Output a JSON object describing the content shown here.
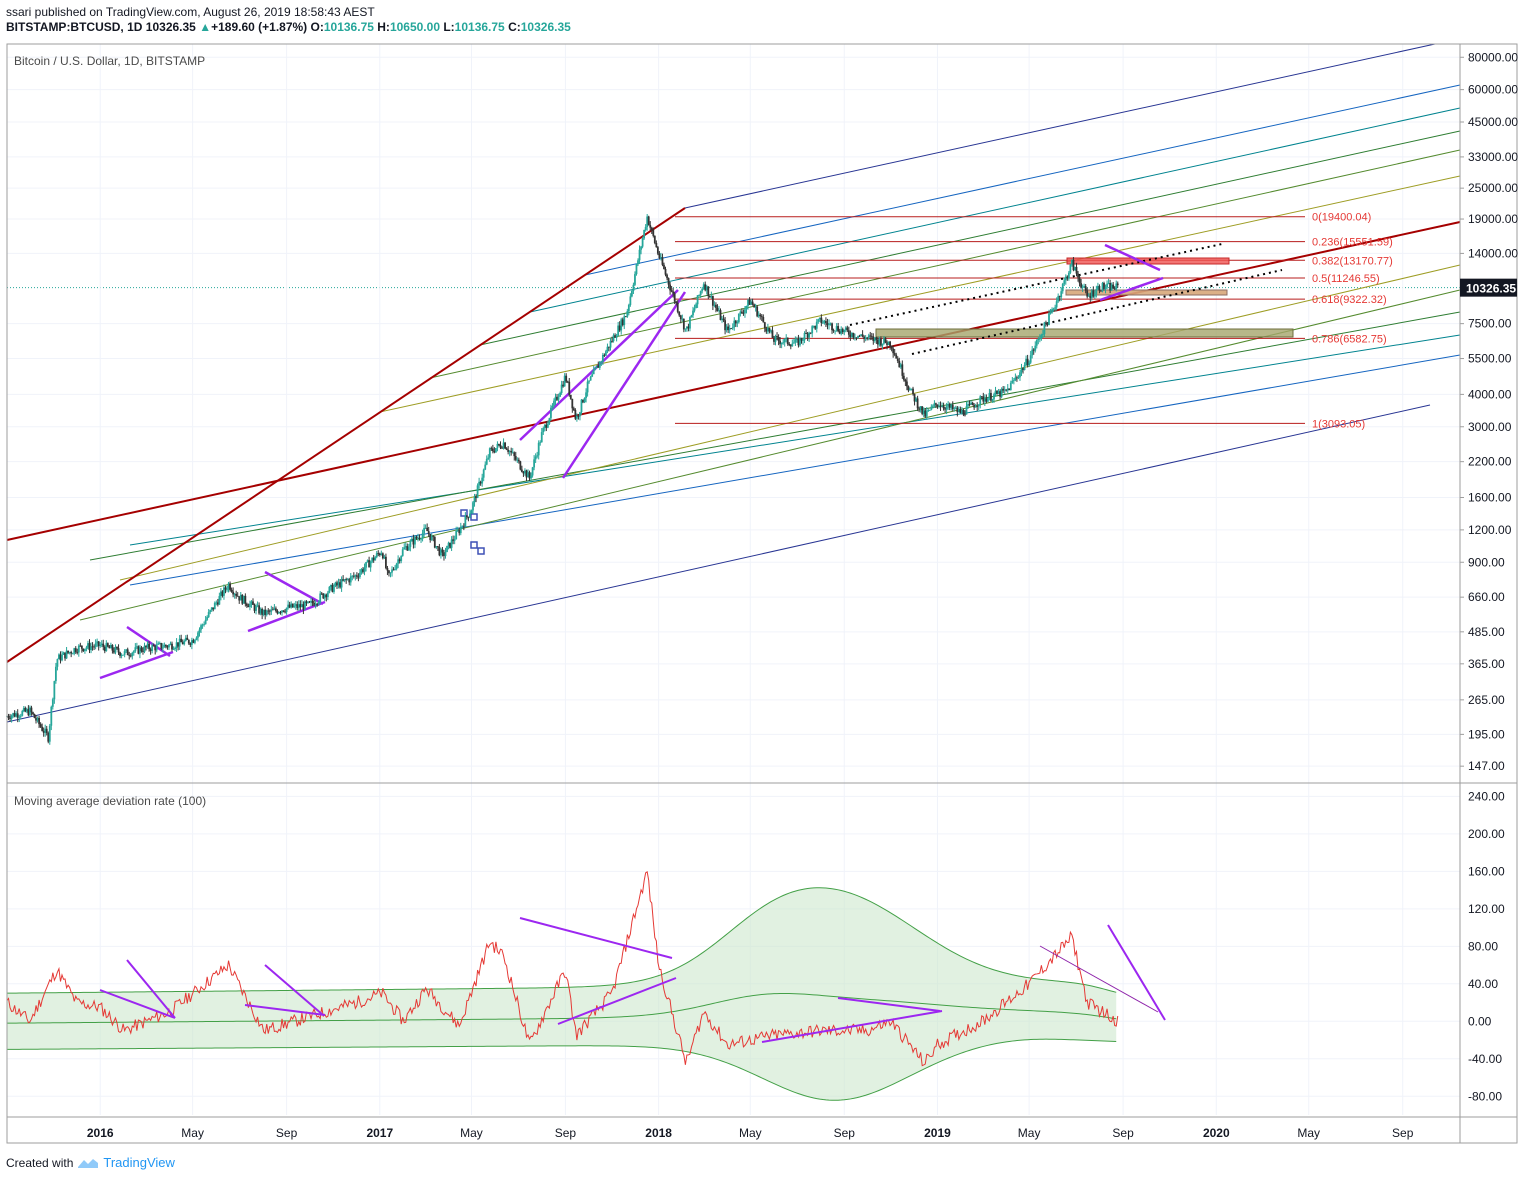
{
  "header": {
    "user": "ssari",
    "published": " published on TradingView.com, August 26, 2019 18:58:43 AEST",
    "symbol": "BITSTAMP:BTCUSD, 1D",
    "price": "10326.35",
    "change": "+189.60 (+1.87%)",
    "open_label": "O:",
    "open": "10136.75",
    "high_label": "H:",
    "high": "10650.00",
    "low_label": "L:",
    "low": "10136.75",
    "close_label": "C:",
    "close": "10326.35"
  },
  "footer": {
    "created": "Created with",
    "brand": "TradingView"
  },
  "colors": {
    "candle_up": "#26a69a",
    "candle_down": "#333333",
    "fib": "#b71c1c",
    "trend_purple": "#9c27f0",
    "mad_line": "#e53935",
    "band_fill": "#c8e6c9",
    "band_line": "#43a047",
    "price_badge": "#131722"
  },
  "chart_data": [
    {
      "type": "candlestick",
      "title": "Bitcoin / U.S. Dollar, 1D, BITSTAMP",
      "yscale": "log",
      "ylim": [
        130,
        90000
      ],
      "yticks": [
        "80000.00",
        "60000.00",
        "45000.00",
        "33000.00",
        "25000.00",
        "19000.00",
        "14000.00",
        "10326.35",
        "7500.00",
        "5500.00",
        "4000.00",
        "3000.00",
        "2200.00",
        "1600.00",
        "1200.00",
        "900.00",
        "660.00",
        "485.00",
        "365.00",
        "265.00",
        "195.00",
        "147.00"
      ],
      "last_price": 10326.35,
      "fib_levels": [
        {
          "label": "0(19400.04)",
          "value": 19400.04
        },
        {
          "label": "0.236(15551.59)",
          "value": 15551.59
        },
        {
          "label": "0.382(13170.77)",
          "value": 13170.77
        },
        {
          "label": "0.5(11246.55)",
          "value": 11246.55
        },
        {
          "label": "0.618(9322.32)",
          "value": 9322.32
        },
        {
          "label": "0.786(6582.75)",
          "value": 6582.75
        },
        {
          "label": "1(3093.05)",
          "value": 3093.05
        }
      ],
      "series": [
        {
          "x": [
            "2015-09-01",
            "2015-10-01",
            "2015-10-25",
            "2015-11-05",
            "2015-12-01",
            "2016-01-01",
            "2016-02-01",
            "2016-03-01",
            "2016-04-01",
            "2016-05-01",
            "2016-06-01",
            "2016-06-17",
            "2016-07-01",
            "2016-08-02",
            "2016-09-01",
            "2016-10-01",
            "2016-11-01",
            "2016-12-01",
            "2017-01-04",
            "2017-01-12",
            "2017-02-01",
            "2017-03-03",
            "2017-03-24",
            "2017-04-15",
            "2017-05-01",
            "2017-05-25",
            "2017-06-12",
            "2017-07-16",
            "2017-08-01",
            "2017-09-01",
            "2017-09-15",
            "2017-10-01",
            "2017-11-01",
            "2017-11-20",
            "2017-12-17",
            "2018-01-01",
            "2018-02-06",
            "2018-03-01",
            "2018-04-01",
            "2018-05-01",
            "2018-06-01",
            "2018-07-01",
            "2018-08-01",
            "2018-09-01",
            "2018-10-01",
            "2018-11-01",
            "2018-11-25",
            "2018-12-15",
            "2019-01-01",
            "2019-02-01",
            "2019-03-01",
            "2019-04-01",
            "2019-05-01",
            "2019-06-01",
            "2019-06-26",
            "2019-07-16",
            "2019-08-01",
            "2019-08-26"
          ],
          "values": [
            230,
            240,
            190,
            380,
            420,
            430,
            400,
            420,
            430,
            450,
            630,
            740,
            660,
            570,
            600,
            615,
            720,
            800,
            1000,
            780,
            1010,
            1200,
            950,
            1200,
            1450,
            2400,
            2600,
            1900,
            2800,
            4700,
            3200,
            4400,
            6500,
            8200,
            19400,
            13800,
            7000,
            10800,
            7000,
            9200,
            6500,
            6300,
            7700,
            7000,
            6600,
            6300,
            4200,
            3300,
            3700,
            3400,
            3850,
            4100,
            5500,
            8500,
            12800,
            9500,
            10400,
            10326
          ]
        }
      ]
    },
    {
      "type": "line",
      "title": "Moving average deviation rate (100)",
      "ylim": [
        -100,
        250
      ],
      "yticks": [
        "240.00",
        "200.00",
        "160.00",
        "120.00",
        "80.00",
        "40.00",
        "0.00",
        "-40.00",
        "-80.00"
      ],
      "xticks": [
        "2016",
        "May",
        "Sep",
        "2017",
        "May",
        "Sep",
        "2018",
        "May",
        "Sep",
        "2019",
        "May",
        "Sep",
        "2020",
        "May",
        "Sep"
      ],
      "series": [
        {
          "name": "",
          "x": [
            "2015-09-01",
            "2015-10-01",
            "2015-11-05",
            "2015-12-01",
            "2016-01-01",
            "2016-02-01",
            "2016-04-01",
            "2016-06-17",
            "2016-08-02",
            "2016-10-01",
            "2016-12-01",
            "2017-01-04",
            "2017-02-01",
            "2017-03-03",
            "2017-04-15",
            "2017-05-25",
            "2017-06-12",
            "2017-07-16",
            "2017-09-01",
            "2017-09-15",
            "2017-11-01",
            "2017-12-17",
            "2018-01-01",
            "2018-02-06",
            "2018-03-01",
            "2018-04-01",
            "2018-06-01",
            "2018-08-01",
            "2018-10-01",
            "2018-11-01",
            "2018-12-15",
            "2019-01-01",
            "2019-03-01",
            "2019-05-01",
            "2019-06-26",
            "2019-07-16",
            "2019-08-26"
          ],
          "values": [
            20,
            0,
            55,
            20,
            15,
            -10,
            10,
            60,
            -10,
            5,
            20,
            30,
            0,
            35,
            -5,
            85,
            70,
            -25,
            55,
            -15,
            30,
            160,
            60,
            -45,
            10,
            -25,
            -15,
            -10,
            -10,
            0,
            -45,
            -25,
            0,
            40,
            90,
            20,
            0
          ]
        }
      ]
    }
  ]
}
